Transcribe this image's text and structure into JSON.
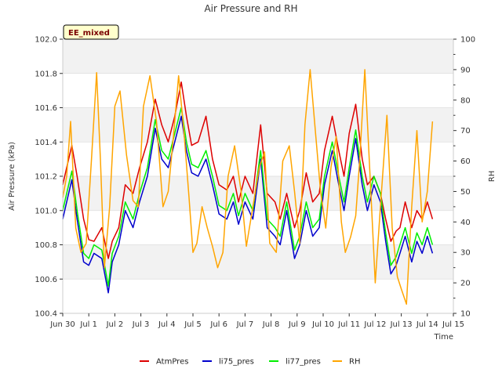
{
  "chart_data": {
    "type": "line",
    "title": "Air Pressure and RH",
    "xlabel": "Time",
    "ylabel": "Air Pressure (kPa)",
    "y2label": "RH",
    "badge": "EE_mixed",
    "x_ticks": [
      "Jun 30",
      "Jul 1",
      "Jul 2",
      "Jul 3",
      "Jul 4",
      "Jul 5",
      "Jul 6",
      "Jul 7",
      "Jul 8",
      "Jul 9",
      "Jul 10",
      "Jul 11",
      "Jul 12",
      "Jul 13",
      "Jul 14",
      "Jul 15"
    ],
    "xlim": [
      0,
      15
    ],
    "ylim": [
      100.4,
      102.0
    ],
    "y_ticks": [
      "100.4",
      "100.6",
      "100.8",
      "101.0",
      "101.2",
      "101.4",
      "101.6",
      "101.8",
      "102.0"
    ],
    "y2lim": [
      10,
      100
    ],
    "y2_ticks": [
      "10",
      "20",
      "30",
      "40",
      "50",
      "60",
      "70",
      "80",
      "90",
      "100"
    ],
    "grid": true,
    "legend_position": "bottom",
    "series": [
      {
        "name": "AtmPres",
        "axis": "left",
        "color": "#dd0000",
        "x": [
          0,
          0.15,
          0.35,
          0.55,
          0.8,
          1.0,
          1.2,
          1.5,
          1.75,
          1.9,
          2.15,
          2.4,
          2.7,
          2.95,
          3.25,
          3.55,
          3.8,
          4.05,
          4.3,
          4.55,
          4.75,
          4.95,
          5.2,
          5.5,
          5.75,
          6.0,
          6.3,
          6.55,
          6.75,
          7.0,
          7.3,
          7.6,
          7.85,
          8.15,
          8.35,
          8.6,
          8.9,
          9.1,
          9.35,
          9.6,
          9.85,
          10.05,
          10.35,
          10.6,
          10.8,
          11.0,
          11.25,
          11.5,
          11.7,
          11.95,
          12.2,
          12.4,
          12.6,
          12.8,
          12.95,
          13.15,
          13.4,
          13.6,
          13.8,
          14.0,
          14.2
        ],
        "values": [
          101.15,
          101.25,
          101.38,
          101.2,
          100.95,
          100.83,
          100.82,
          100.9,
          100.72,
          100.82,
          100.9,
          101.15,
          101.1,
          101.25,
          101.4,
          101.65,
          101.5,
          101.4,
          101.55,
          101.75,
          101.55,
          101.38,
          101.4,
          101.55,
          101.3,
          101.15,
          101.12,
          101.2,
          101.05,
          101.2,
          101.1,
          101.5,
          101.1,
          101.05,
          100.95,
          101.1,
          100.9,
          101.0,
          101.22,
          101.05,
          101.1,
          101.35,
          101.55,
          101.35,
          101.2,
          101.45,
          101.62,
          101.3,
          101.15,
          101.2,
          101.1,
          100.95,
          100.82,
          100.88,
          100.9,
          101.05,
          100.9,
          101.0,
          100.95,
          101.05,
          100.95
        ]
      },
      {
        "name": "li75_pres",
        "axis": "left",
        "color": "#0000cc",
        "x": [
          0,
          0.15,
          0.35,
          0.55,
          0.8,
          1.0,
          1.2,
          1.5,
          1.75,
          1.9,
          2.15,
          2.4,
          2.7,
          2.95,
          3.25,
          3.55,
          3.8,
          4.05,
          4.3,
          4.55,
          4.75,
          4.95,
          5.2,
          5.5,
          5.75,
          6.0,
          6.3,
          6.55,
          6.75,
          7.0,
          7.3,
          7.6,
          7.85,
          8.15,
          8.35,
          8.6,
          8.9,
          9.1,
          9.35,
          9.6,
          9.85,
          10.05,
          10.35,
          10.6,
          10.8,
          11.0,
          11.25,
          11.5,
          11.7,
          11.95,
          12.2,
          12.4,
          12.6,
          12.8,
          12.95,
          13.15,
          13.4,
          13.6,
          13.8,
          14.0,
          14.2
        ],
        "values": [
          100.95,
          101.05,
          101.18,
          100.95,
          100.7,
          100.68,
          100.75,
          100.72,
          100.52,
          100.7,
          100.8,
          101.0,
          100.9,
          101.05,
          101.2,
          101.48,
          101.3,
          101.25,
          101.4,
          101.55,
          101.35,
          101.22,
          101.2,
          101.3,
          101.15,
          100.98,
          100.95,
          101.05,
          100.92,
          101.05,
          100.95,
          101.3,
          100.9,
          100.85,
          100.8,
          101.0,
          100.72,
          100.8,
          101.0,
          100.85,
          100.9,
          101.15,
          101.35,
          101.15,
          101.0,
          101.2,
          101.42,
          101.15,
          101.0,
          101.15,
          101.05,
          100.82,
          100.63,
          100.68,
          100.75,
          100.85,
          100.7,
          100.82,
          100.75,
          100.85,
          100.75
        ]
      },
      {
        "name": "li77_pres",
        "axis": "left",
        "color": "#00ee00",
        "x": [
          0,
          0.15,
          0.35,
          0.55,
          0.8,
          1.0,
          1.2,
          1.5,
          1.75,
          1.9,
          2.15,
          2.4,
          2.7,
          2.95,
          3.25,
          3.55,
          3.8,
          4.05,
          4.3,
          4.55,
          4.75,
          4.95,
          5.2,
          5.5,
          5.75,
          6.0,
          6.3,
          6.55,
          6.75,
          7.0,
          7.3,
          7.6,
          7.85,
          8.15,
          8.35,
          8.6,
          8.9,
          9.1,
          9.35,
          9.6,
          9.85,
          10.05,
          10.35,
          10.6,
          10.8,
          11.0,
          11.25,
          11.5,
          11.7,
          11.95,
          12.2,
          12.4,
          12.6,
          12.8,
          12.95,
          13.15,
          13.4,
          13.6,
          13.8,
          14.0,
          14.2
        ],
        "values": [
          101.0,
          101.1,
          101.23,
          101.0,
          100.75,
          100.72,
          100.8,
          100.77,
          100.56,
          100.75,
          100.85,
          101.05,
          100.95,
          101.1,
          101.25,
          101.53,
          101.35,
          101.3,
          101.45,
          101.6,
          101.4,
          101.27,
          101.25,
          101.35,
          101.2,
          101.03,
          101.0,
          101.1,
          100.97,
          101.1,
          101.0,
          101.35,
          100.95,
          100.9,
          100.85,
          101.05,
          100.77,
          100.85,
          101.05,
          100.9,
          100.95,
          101.2,
          101.4,
          101.2,
          101.05,
          101.25,
          101.47,
          101.2,
          101.05,
          101.2,
          101.1,
          100.87,
          100.68,
          100.73,
          100.8,
          100.9,
          100.75,
          100.87,
          100.8,
          100.9,
          100.8
        ]
      },
      {
        "name": "RH",
        "axis": "right",
        "color": "#ffa500",
        "x": [
          0,
          0.15,
          0.3,
          0.5,
          0.7,
          0.9,
          1.1,
          1.3,
          1.45,
          1.6,
          1.8,
          2.0,
          2.2,
          2.45,
          2.7,
          2.9,
          3.1,
          3.35,
          3.6,
          3.85,
          4.05,
          4.25,
          4.45,
          4.65,
          4.85,
          5.0,
          5.15,
          5.35,
          5.55,
          5.75,
          5.95,
          6.15,
          6.35,
          6.6,
          6.85,
          7.05,
          7.3,
          7.55,
          7.75,
          7.95,
          8.2,
          8.45,
          8.7,
          8.9,
          9.1,
          9.3,
          9.5,
          9.7,
          9.9,
          10.1,
          10.3,
          10.5,
          10.7,
          10.85,
          11.05,
          11.25,
          11.4,
          11.6,
          11.8,
          12.0,
          12.2,
          12.45,
          12.65,
          12.85,
          13.0,
          13.2,
          13.4,
          13.6,
          13.8,
          14.0,
          14.2
        ],
        "values": [
          48,
          55,
          73,
          38,
          30,
          33,
          60,
          89,
          60,
          25,
          45,
          78,
          83,
          62,
          47,
          45,
          78,
          88,
          73,
          45,
          50,
          68,
          88,
          70,
          48,
          30,
          33,
          45,
          38,
          32,
          25,
          30,
          55,
          65,
          50,
          32,
          45,
          58,
          63,
          33,
          30,
          60,
          65,
          50,
          33,
          72,
          90,
          70,
          50,
          38,
          58,
          68,
          40,
          30,
          35,
          42,
          60,
          90,
          55,
          20,
          45,
          75,
          38,
          22,
          18,
          13,
          45,
          70,
          40,
          50,
          73
        ]
      }
    ]
  }
}
